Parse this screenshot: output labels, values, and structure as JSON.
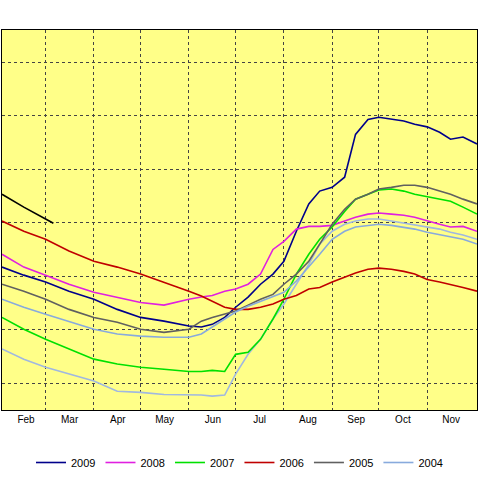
{
  "chart_data": {
    "type": "line",
    "x": [
      32,
      46,
      60,
      75,
      91,
      106,
      121,
      136,
      152,
      160,
      167,
      175,
      182,
      190,
      198,
      206,
      213,
      221,
      229,
      236,
      244,
      252,
      259,
      267,
      274,
      282,
      290,
      297,
      305,
      313,
      320,
      328,
      337
    ],
    "series": [
      {
        "color": "#a0b8e0",
        "values": [
          0.64,
          0.45,
          0.3,
          0.17,
          0.04,
          -0.15,
          -0.17,
          -0.21,
          -0.22,
          -0.22,
          -0.24,
          -0.22,
          0.17,
          0.54,
          0.82,
          1.2,
          1.48,
          1.85,
          2.22,
          2.6,
          2.84,
          2.97,
          3.03,
          3.07,
          3.07,
          3.03,
          2.99,
          2.95,
          2.92,
          2.88,
          2.82,
          2.77,
          2.69
        ]
      },
      {
        "color": "#000000",
        "x": [
          32,
          46,
          60,
          65
        ],
        "values": [
          3.53,
          3.29,
          3.07,
          2.99
        ]
      },
      {
        "name": "2009",
        "color": "#00008b",
        "values": [
          2.17,
          2.02,
          1.89,
          1.72,
          1.57,
          1.38,
          1.23,
          1.16,
          1.07,
          1.05,
          1.1,
          1.23,
          1.42,
          1.61,
          1.85,
          2.04,
          2.28,
          2.84,
          3.35,
          3.59,
          3.66,
          3.85,
          4.65,
          4.93,
          4.97,
          4.93,
          4.9,
          4.84,
          4.79,
          4.69,
          4.56,
          4.6,
          4.47
        ]
      },
      {
        "name": "2008",
        "color": "#e020e0",
        "values": [
          2.41,
          2.17,
          2.02,
          1.85,
          1.7,
          1.61,
          1.51,
          1.46,
          1.57,
          1.61,
          1.64,
          1.72,
          1.76,
          1.85,
          2.04,
          2.5,
          2.65,
          2.88,
          2.93,
          2.93,
          2.95,
          3.03,
          3.1,
          3.16,
          3.18,
          3.16,
          3.14,
          3.1,
          3.03,
          2.97,
          2.92,
          2.93,
          2.84
        ]
      },
      {
        "name": "2007",
        "color": "#00e000",
        "values": [
          1.23,
          1.01,
          0.82,
          0.64,
          0.45,
          0.36,
          0.3,
          0.26,
          0.22,
          0.22,
          0.24,
          0.22,
          0.54,
          0.58,
          0.82,
          1.2,
          1.57,
          2.04,
          2.41,
          2.69,
          2.92,
          3.21,
          3.44,
          3.53,
          3.61,
          3.63,
          3.59,
          3.53,
          3.48,
          3.44,
          3.4,
          3.29,
          3.16
        ]
      },
      {
        "name": "2006",
        "color": "#c00000",
        "values": [
          3.03,
          2.84,
          2.69,
          2.47,
          2.28,
          2.17,
          2.04,
          1.89,
          1.72,
          1.63,
          1.53,
          1.42,
          1.38,
          1.38,
          1.42,
          1.48,
          1.57,
          1.64,
          1.76,
          1.79,
          1.89,
          1.98,
          2.06,
          2.13,
          2.15,
          2.13,
          2.09,
          2.04,
          1.94,
          1.89,
          1.85,
          1.79,
          1.72
        ]
      },
      {
        "name": "2005",
        "color": "#606060",
        "values": [
          1.85,
          1.72,
          1.57,
          1.38,
          1.23,
          1.14,
          1.01,
          0.95,
          1.01,
          1.16,
          1.23,
          1.29,
          1.35,
          1.46,
          1.57,
          1.66,
          1.85,
          2.04,
          2.28,
          2.6,
          2.97,
          3.25,
          3.44,
          3.53,
          3.63,
          3.66,
          3.7,
          3.7,
          3.66,
          3.59,
          3.53,
          3.44,
          3.35
        ]
      },
      {
        "name": "2004",
        "color": "#88aadd",
        "values": [
          1.57,
          1.42,
          1.29,
          1.16,
          1.01,
          0.92,
          0.88,
          0.86,
          0.86,
          0.92,
          1.05,
          1.2,
          1.33,
          1.44,
          1.53,
          1.61,
          1.7,
          1.91,
          2.17,
          2.41,
          2.69,
          2.84,
          2.92,
          2.95,
          2.97,
          2.95,
          2.92,
          2.88,
          2.82,
          2.77,
          2.73,
          2.69,
          2.6
        ]
      }
    ],
    "xlim": [
      32,
      337
    ],
    "xticks": [
      {
        "value": 32,
        "label": "Feb"
      },
      {
        "value": 60,
        "label": "Mar"
      },
      {
        "value": 91,
        "label": "Apr"
      },
      {
        "value": 121,
        "label": "May"
      },
      {
        "value": 152,
        "label": "Jun"
      },
      {
        "value": 182,
        "label": "Jul"
      },
      {
        "value": 213,
        "label": "Aug"
      },
      {
        "value": 244,
        "label": "Sep"
      },
      {
        "value": 274,
        "label": "Oct"
      },
      {
        "value": 305,
        "label": "Nov"
      }
    ],
    "ylim": [
      -0.5,
      6.6
    ],
    "yticks": [
      0,
      1,
      2,
      3,
      4,
      5,
      6
    ],
    "grid": true,
    "tick_labels": "x",
    "legend": "bottom"
  }
}
